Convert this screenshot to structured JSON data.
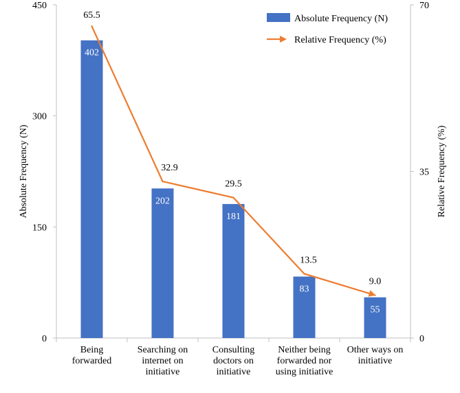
{
  "chart_data": {
    "type": "bar+line",
    "categories": [
      [
        "Being",
        "forwarded"
      ],
      [
        "Searching on",
        "internet on",
        "initiative"
      ],
      [
        "Consulting",
        "doctors on",
        "initiative"
      ],
      [
        "Neither being",
        "forwarded nor",
        "using initiative"
      ],
      [
        "Other ways on",
        "initiative"
      ]
    ],
    "series": [
      {
        "name": "Absolute Frequency (N)",
        "type": "bar",
        "axis": "left",
        "values": [
          402,
          202,
          181,
          83,
          55
        ],
        "labels": [
          "402",
          "202",
          "181",
          "83",
          "55"
        ],
        "color": "#4472C4"
      },
      {
        "name": "Relative Frequency (%)",
        "type": "line",
        "axis": "right",
        "values": [
          65.5,
          32.9,
          29.5,
          13.5,
          9.0
        ],
        "labels": [
          "65.5",
          "32.9",
          "29.5",
          "13.5",
          "9.0"
        ],
        "color": "#ED7D31"
      }
    ],
    "ylabel": "Absolute Frequency (N)",
    "y2label": "Relative Frequency (%)",
    "ylim": [
      0,
      450
    ],
    "y2lim": [
      0,
      70
    ],
    "yticks": [
      "0",
      "150",
      "300",
      "450"
    ],
    "y2ticks": [
      "0",
      "35",
      "70"
    ],
    "legend_position": "top-right",
    "grid": false
  }
}
